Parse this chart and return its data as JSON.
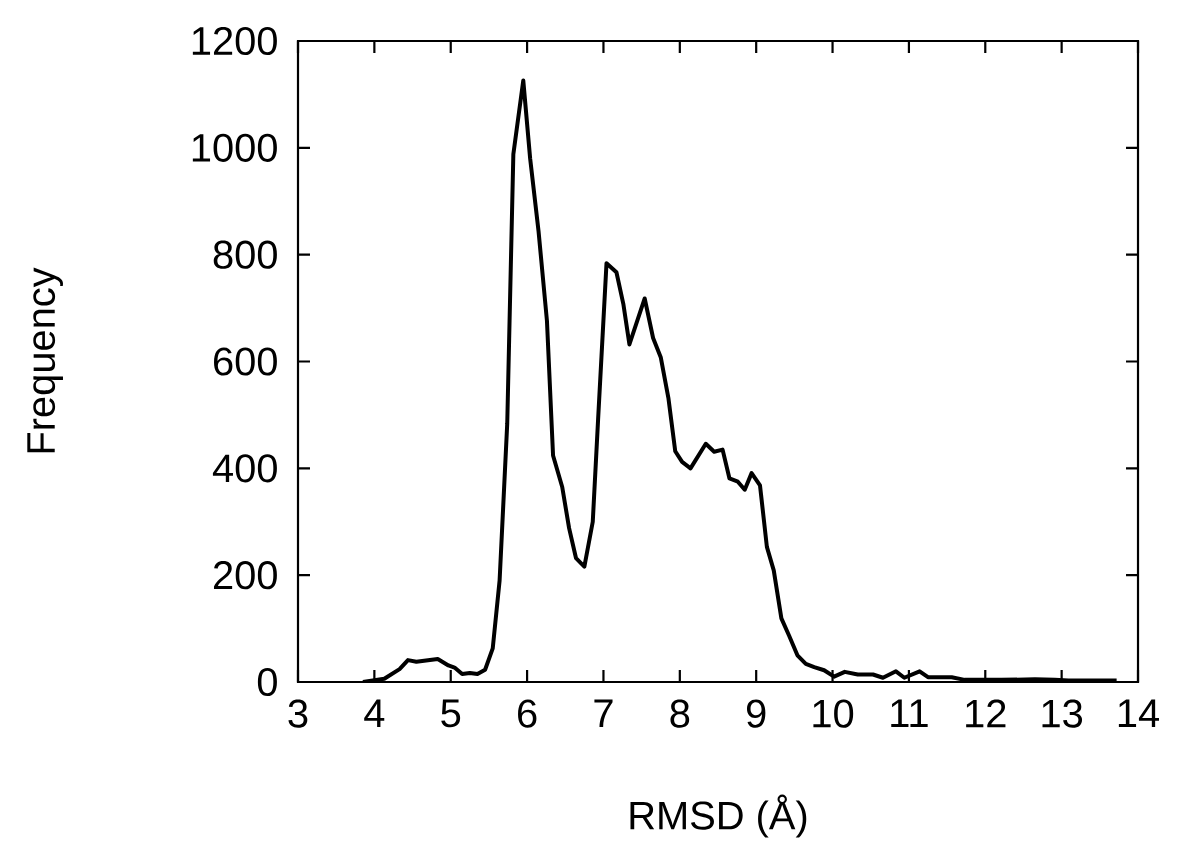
{
  "chart_data": {
    "type": "line",
    "xlabel": "RMSD (Å)",
    "ylabel": "Frequency",
    "xlim": [
      3,
      14
    ],
    "ylim": [
      0,
      1200
    ],
    "xticks": [
      3,
      4,
      5,
      6,
      7,
      8,
      9,
      10,
      11,
      12,
      13,
      14
    ],
    "yticks": [
      0,
      200,
      400,
      600,
      800,
      1000,
      1200
    ],
    "grid": false,
    "marker": "none",
    "line_style": "solid",
    "series": [
      {
        "color": "#000000",
        "x": [
          3.85,
          4.13,
          4.33,
          4.44,
          4.55,
          4.83,
          4.97,
          5.05,
          5.15,
          5.25,
          5.35,
          5.45,
          5.55,
          5.64,
          5.74,
          5.82,
          5.95,
          6.04,
          6.15,
          6.26,
          6.34,
          6.46,
          6.55,
          6.64,
          6.75,
          6.86,
          6.93,
          7.04,
          7.17,
          7.26,
          7.34,
          7.54,
          7.65,
          7.75,
          7.85,
          7.94,
          8.03,
          8.14,
          8.34,
          8.45,
          8.56,
          8.65,
          8.76,
          8.85,
          8.94,
          9.05,
          9.14,
          9.23,
          9.33,
          9.43,
          9.54,
          9.65,
          9.76,
          9.89,
          10.02,
          10.16,
          10.33,
          10.53,
          10.66,
          10.83,
          10.94,
          11.14,
          11.25,
          11.56,
          11.73,
          12.21,
          12.65,
          12.91,
          13.09,
          13.72
        ],
        "values": [
          0,
          6,
          24,
          41,
          38,
          43,
          31,
          27,
          15,
          17,
          15,
          23,
          63,
          190,
          484,
          988,
          1126,
          980,
          844,
          676,
          424,
          365,
          288,
          232,
          216,
          300,
          492,
          784,
          767,
          708,
          632,
          718,
          644,
          608,
          532,
          432,
          412,
          400,
          446,
          431,
          435,
          381,
          375,
          360,
          391,
          368,
          253,
          209,
          119,
          87,
          50,
          34,
          28,
          22,
          10,
          19,
          14,
          14,
          8,
          20,
          8,
          20,
          9,
          9,
          4,
          4,
          5,
          4,
          3,
          3
        ]
      }
    ]
  }
}
